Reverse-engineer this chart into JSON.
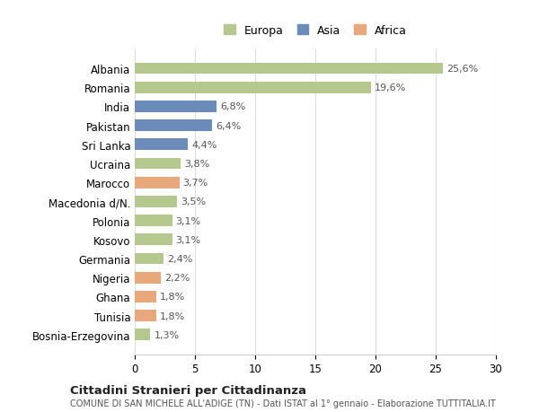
{
  "countries": [
    "Albania",
    "Romania",
    "India",
    "Pakistan",
    "Sri Lanka",
    "Ucraina",
    "Marocco",
    "Macedonia d/N.",
    "Polonia",
    "Kosovo",
    "Germania",
    "Nigeria",
    "Ghana",
    "Tunisia",
    "Bosnia-Erzegovina"
  ],
  "values": [
    25.6,
    19.6,
    6.8,
    6.4,
    4.4,
    3.8,
    3.7,
    3.5,
    3.1,
    3.1,
    2.4,
    2.2,
    1.8,
    1.8,
    1.3
  ],
  "continents": [
    "Europa",
    "Europa",
    "Asia",
    "Asia",
    "Asia",
    "Europa",
    "Africa",
    "Europa",
    "Europa",
    "Europa",
    "Europa",
    "Africa",
    "Africa",
    "Africa",
    "Europa"
  ],
  "colors": {
    "Europa": "#b5c98e",
    "Asia": "#6b8cba",
    "Africa": "#e8a87c"
  },
  "xlim": [
    0,
    30
  ],
  "xticks": [
    0,
    5,
    10,
    15,
    20,
    25,
    30
  ],
  "title": "Cittadini Stranieri per Cittadinanza",
  "subtitle": "COMUNE DI SAN MICHELE ALL'ADIGE (TN) - Dati ISTAT al 1° gennaio - Elaborazione TUTTITALIA.IT",
  "bg_color": "#ffffff",
  "grid_color": "#dddddd"
}
